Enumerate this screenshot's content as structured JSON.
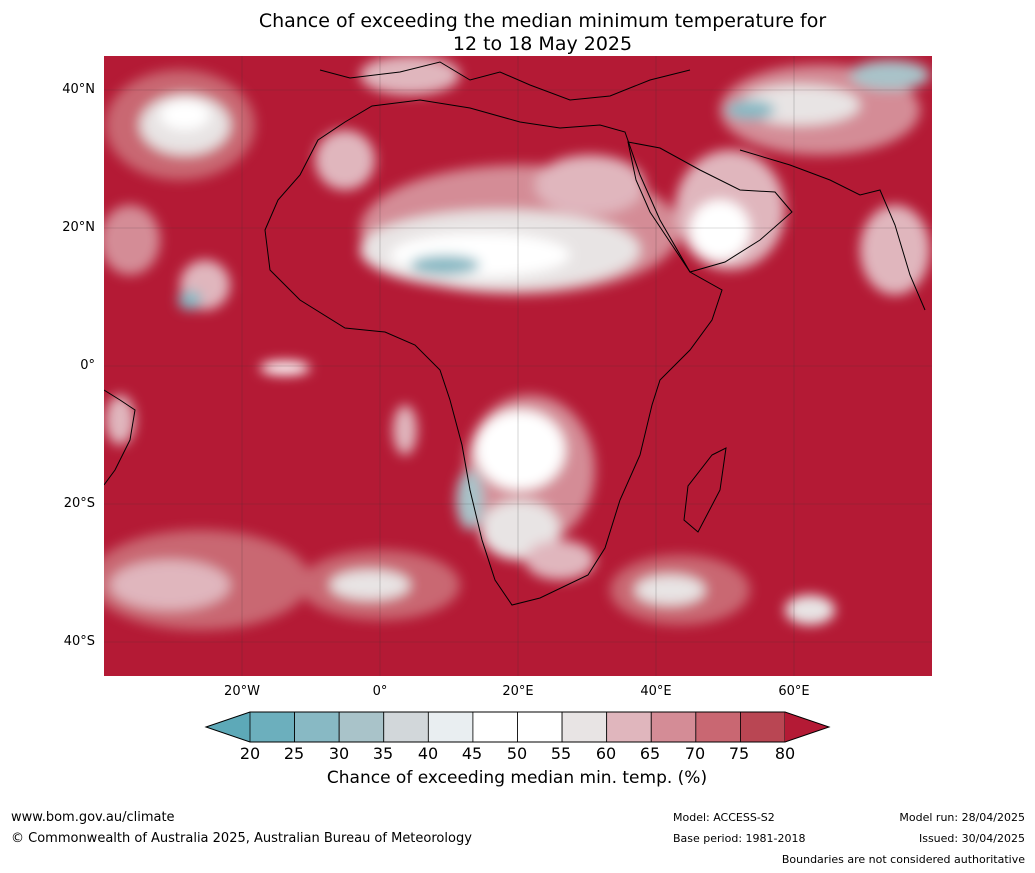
{
  "title": {
    "line1": "Chance of exceeding the median minimum temperature for",
    "line2": "12 to 18 May 2025"
  },
  "map": {
    "lat_labels": [
      "40°N",
      "20°N",
      "0°",
      "20°S",
      "40°S"
    ],
    "lon_labels": [
      "20°W",
      "0°",
      "20°E",
      "40°E",
      "60°E"
    ],
    "colors": {
      "ocean_dominant": "#b41a35",
      "land_boundary": "#000000",
      "country_boundary": "#7f7f7f",
      "graticule": "#333333"
    }
  },
  "colorbar": {
    "ticks": [
      "20",
      "25",
      "30",
      "35",
      "40",
      "45",
      "50",
      "55",
      "60",
      "65",
      "70",
      "75",
      "80"
    ],
    "colors": [
      "#5da9b8",
      "#6cafbd",
      "#88b9c4",
      "#a9c3c9",
      "#d2d7da",
      "#e9eef1",
      "#ffffff",
      "#ffffff",
      "#e8e4e4",
      "#e0b6bd",
      "#d48c96",
      "#c96772",
      "#b94653",
      "#b41a35"
    ],
    "label": "Chance of exceeding median min. temp. (%)"
  },
  "footer": {
    "website": "www.bom.gov.au/climate",
    "copyright": "© Commonwealth of Australia 2025, Australian Bureau of Meteorology",
    "model": "Model: ACCESS-S2",
    "base_period": "Base period: 1981-2018",
    "model_run": "Model run: 28/04/2025",
    "issued": "Issued: 30/04/2025",
    "disclaimer": "Boundaries are not considered authoritative"
  }
}
